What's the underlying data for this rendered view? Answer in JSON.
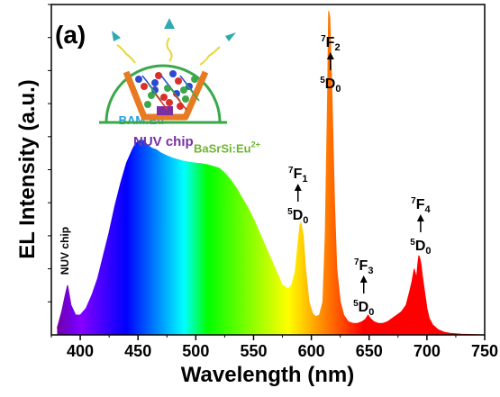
{
  "panel_label": "(a)",
  "inset": {
    "caption": "NUV chip"
  },
  "chart_data": {
    "type": "area",
    "title": "",
    "xlabel": "Wavelength (nm)",
    "ylabel": "EL Intensity (a.u.)",
    "xlim": [
      375,
      750
    ],
    "ylim": [
      0,
      1.0
    ],
    "x_ticks": [
      400,
      450,
      500,
      550,
      600,
      650,
      700,
      750
    ],
    "x_tick_labels": [
      "400",
      "450",
      "500",
      "550",
      "600",
      "650",
      "700",
      "750"
    ],
    "y_ticks_labeled": false,
    "grid": false,
    "legend": "none",
    "fill": "wavelength-color gradient under the curve",
    "x": [
      380,
      384,
      387,
      389,
      392,
      396,
      400,
      405,
      410,
      415,
      420,
      425,
      430,
      435,
      440,
      445,
      448,
      452,
      455,
      458,
      462,
      466,
      470,
      475,
      480,
      485,
      490,
      495,
      500,
      505,
      510,
      515,
      520,
      525,
      530,
      535,
      540,
      545,
      550,
      555,
      560,
      565,
      570,
      575,
      580,
      583,
      586,
      588,
      590,
      591,
      593,
      595,
      598,
      601,
      604,
      607,
      610,
      612,
      614,
      615,
      616,
      618,
      620,
      622,
      625,
      628,
      632,
      636,
      640,
      644,
      647,
      649,
      651,
      654,
      658,
      662,
      666,
      670,
      674,
      678,
      682,
      685,
      687,
      689,
      691,
      692,
      693,
      694,
      695,
      696,
      698,
      700,
      702,
      705,
      710,
      715,
      720,
      730,
      740,
      750
    ],
    "y": [
      0.02,
      0.07,
      0.12,
      0.15,
      0.09,
      0.06,
      0.06,
      0.08,
      0.12,
      0.17,
      0.24,
      0.31,
      0.39,
      0.46,
      0.52,
      0.56,
      0.58,
      0.59,
      0.588,
      0.575,
      0.565,
      0.56,
      0.55,
      0.542,
      0.535,
      0.53,
      0.525,
      0.522,
      0.52,
      0.518,
      0.515,
      0.51,
      0.505,
      0.49,
      0.47,
      0.445,
      0.415,
      0.385,
      0.35,
      0.31,
      0.27,
      0.23,
      0.19,
      0.15,
      0.14,
      0.15,
      0.19,
      0.26,
      0.33,
      0.34,
      0.3,
      0.2,
      0.1,
      0.065,
      0.055,
      0.06,
      0.1,
      0.3,
      0.72,
      0.98,
      0.96,
      0.7,
      0.4,
      0.2,
      0.1,
      0.06,
      0.04,
      0.035,
      0.035,
      0.04,
      0.048,
      0.06,
      0.05,
      0.04,
      0.035,
      0.035,
      0.04,
      0.05,
      0.06,
      0.07,
      0.09,
      0.13,
      0.16,
      0.2,
      0.17,
      0.21,
      0.24,
      0.23,
      0.21,
      0.18,
      0.13,
      0.08,
      0.05,
      0.03,
      0.015,
      0.008,
      0.005,
      0.002,
      0.001,
      0.0
    ],
    "annotations": [
      {
        "id": "nuv",
        "label": "NUV chip",
        "x": 386,
        "y": 0.16
      },
      {
        "id": "bam",
        "label": "BAM:Eu",
        "sup": "2+",
        "x": 455,
        "y": 0.6
      },
      {
        "id": "basrsi",
        "label": "BaSrSi:Eu",
        "sup": "2+",
        "x": 520,
        "y": 0.53
      },
      {
        "id": "f1",
        "upper_sup": "7",
        "upper": "F",
        "upper_sub": "1",
        "lower_sup": "5",
        "lower": "D",
        "lower_sub": "0",
        "x": 590,
        "y": 0.34
      },
      {
        "id": "f2",
        "upper_sup": "7",
        "upper": "F",
        "upper_sub": "2",
        "lower_sup": "5",
        "lower": "D",
        "lower_sub": "0",
        "x": 615,
        "y": 0.98
      },
      {
        "id": "f3",
        "upper_sup": "7",
        "upper": "F",
        "upper_sub": "3",
        "lower_sup": "5",
        "lower": "D",
        "lower_sub": "0",
        "x": 650,
        "y": 0.06
      },
      {
        "id": "f4",
        "upper_sup": "7",
        "upper": "F",
        "upper_sub": "4",
        "lower_sup": "5",
        "lower": "D",
        "lower_sub": "0",
        "x": 693,
        "y": 0.24
      }
    ]
  }
}
